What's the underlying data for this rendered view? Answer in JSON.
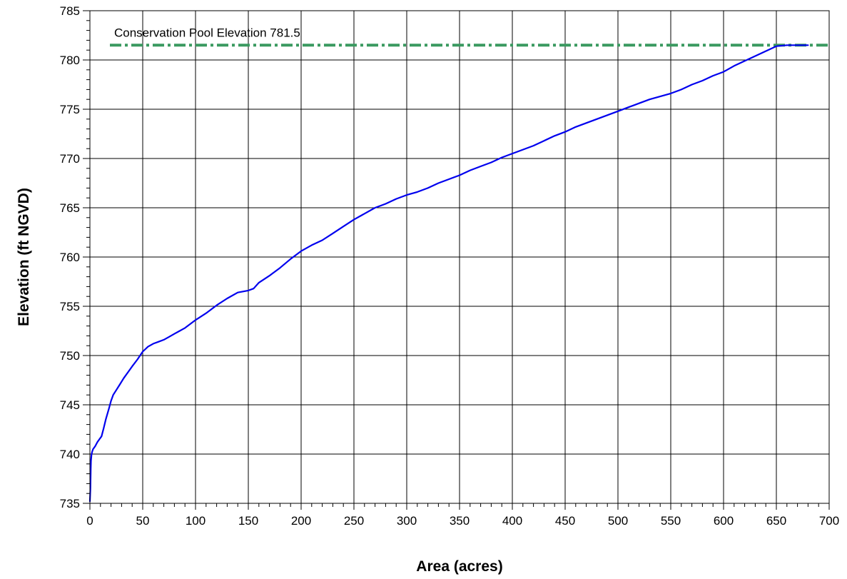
{
  "chart_data": {
    "type": "line",
    "xlabel": "Area (acres)",
    "ylabel": "Elevation (ft NGVD)",
    "xlim": [
      0,
      700
    ],
    "ylim": [
      735,
      785
    ],
    "x_ticks": [
      0,
      50,
      100,
      150,
      200,
      250,
      300,
      350,
      400,
      450,
      500,
      550,
      600,
      650,
      700
    ],
    "y_ticks": [
      735,
      740,
      745,
      750,
      755,
      760,
      765,
      770,
      775,
      780,
      785
    ],
    "x_minor_step": 10,
    "y_minor_step": 1,
    "grid": true,
    "colors": {
      "series": "#0000ee",
      "reference": "#3a9a60",
      "grid": "#000000"
    },
    "series": [
      {
        "x": [
          0,
          0.5,
          0.8,
          1,
          1.5,
          2,
          3,
          5,
          7,
          9,
          11,
          13,
          15,
          18,
          20,
          22,
          25,
          28,
          32,
          36,
          40,
          45,
          50,
          55,
          60,
          65,
          70,
          75,
          80,
          85,
          90,
          100,
          110,
          120,
          130,
          140,
          150,
          155,
          160,
          170,
          180,
          190,
          200,
          210,
          220,
          230,
          240,
          250,
          260,
          270,
          280,
          290,
          300,
          310,
          320,
          330,
          340,
          350,
          360,
          370,
          380,
          390,
          400,
          410,
          420,
          430,
          440,
          450,
          460,
          470,
          480,
          490,
          500,
          510,
          520,
          530,
          540,
          550,
          560,
          570,
          580,
          590,
          600,
          610,
          620,
          630,
          640,
          650,
          660,
          670,
          680
        ],
        "y": [
          735.2,
          736.5,
          738.5,
          739.3,
          739.9,
          740.2,
          740.5,
          740.8,
          741.2,
          741.5,
          741.8,
          742.6,
          743.5,
          744.6,
          745.4,
          746.0,
          746.5,
          747.0,
          747.7,
          748.3,
          748.9,
          749.6,
          750.4,
          750.9,
          751.2,
          751.4,
          751.6,
          751.9,
          752.2,
          752.5,
          752.8,
          753.6,
          754.3,
          755.1,
          755.8,
          756.4,
          756.6,
          756.8,
          757.4,
          758.1,
          758.9,
          759.8,
          760.6,
          761.2,
          761.7,
          762.4,
          763.1,
          763.8,
          764.4,
          765.0,
          765.4,
          765.9,
          766.3,
          766.6,
          767.0,
          767.5,
          767.9,
          768.3,
          768.8,
          769.2,
          769.6,
          770.1,
          770.5,
          770.9,
          771.3,
          771.8,
          772.3,
          772.7,
          773.2,
          773.6,
          774.0,
          774.4,
          774.8,
          775.2,
          775.6,
          776.0,
          776.3,
          776.6,
          777.0,
          777.5,
          777.9,
          778.4,
          778.8,
          779.4,
          779.9,
          780.4,
          780.9,
          781.4,
          781.5,
          781.5,
          781.5
        ]
      }
    ],
    "reference_line": {
      "y": 781.5,
      "label": "Conservation Pool Elevation 781.5",
      "style": "dash-dot"
    }
  }
}
